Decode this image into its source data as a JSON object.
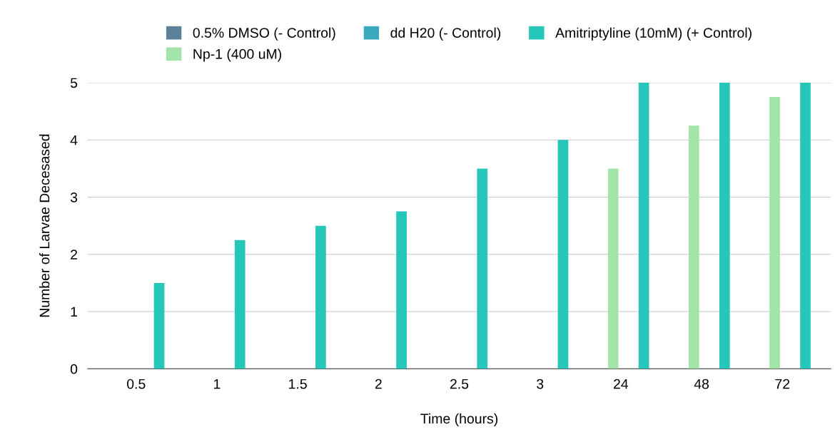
{
  "chart_data": {
    "type": "bar",
    "xlabel": "Time (hours)",
    "ylabel": "Number of Larvae Decesased",
    "categories": [
      "0.5",
      "1",
      "1.5",
      "2",
      "2.5",
      "3",
      "24",
      "48",
      "72"
    ],
    "series": [
      {
        "name": "0.5% DMSO (- Control)",
        "color": "#5b8299",
        "values": [
          0,
          0,
          0,
          0,
          0,
          0,
          0,
          0,
          0
        ]
      },
      {
        "name": "Np-1 (400 uM)",
        "color": "#a3e4a9",
        "values": [
          0,
          0,
          0,
          0,
          0,
          0,
          3.5,
          4.25,
          4.75
        ]
      },
      {
        "name": "dd H20 (- Control)",
        "color": "#3aa9be",
        "values": [
          0,
          0,
          0,
          0,
          0,
          0,
          0,
          0,
          0
        ]
      },
      {
        "name": "Amitriptyline (10mM) (+ Control)",
        "color": "#26c6ba",
        "values": [
          1.5,
          2.25,
          2.5,
          2.75,
          3.5,
          4,
          5,
          5,
          5
        ]
      }
    ],
    "ylim": [
      0,
      5
    ],
    "yticks": [
      0,
      1,
      2,
      3,
      4,
      5
    ],
    "grid": "y",
    "legend": "top"
  }
}
